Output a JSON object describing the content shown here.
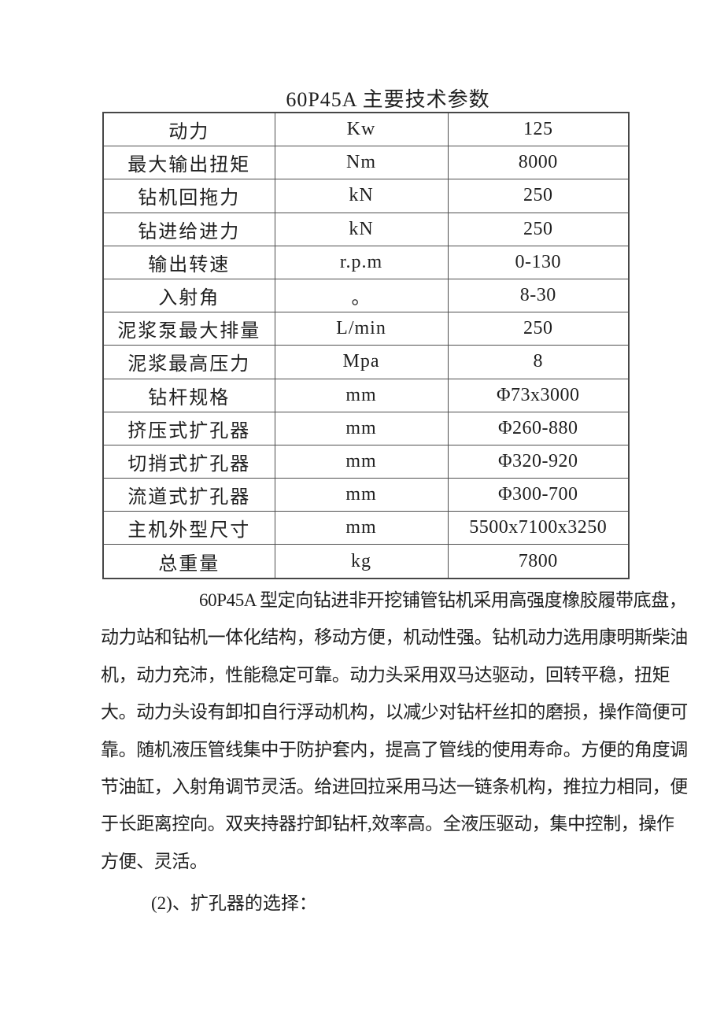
{
  "document": {
    "title": "60P45A 主要技术参数",
    "table": {
      "rows": [
        {
          "param": "动力",
          "unit": "Kw",
          "value": "125"
        },
        {
          "param": "最大输出扭矩",
          "unit": "Nm",
          "value": "8000"
        },
        {
          "param": "钻机回拖力",
          "unit": "kN",
          "value": "250"
        },
        {
          "param": "钻进给进力",
          "unit": "kN",
          "value": "250"
        },
        {
          "param": "输出转速",
          "unit": "r.p.m",
          "value": "0-130"
        },
        {
          "param": "入射角",
          "unit": "。",
          "value": "8-30"
        },
        {
          "param": "泥浆泵最大排量",
          "unit": "L/min",
          "value": "250"
        },
        {
          "param": "泥浆最高压力",
          "unit": "Mpa",
          "value": "8"
        },
        {
          "param": "钻杆规格",
          "unit": "mm",
          "value": "Φ73x3000"
        },
        {
          "param": "挤压式扩孔器",
          "unit": "mm",
          "value": "Φ260-880"
        },
        {
          "param": "切捎式扩孔器",
          "unit": "mm",
          "value": "Φ320-920"
        },
        {
          "param": "流道式扩孔器",
          "unit": "mm",
          "value": "Φ300-700"
        },
        {
          "param": "主机外型尺寸",
          "unit": "mm",
          "value": "5500x7100x3250"
        },
        {
          "param": "总重量",
          "unit": "kg",
          "value": "7800"
        }
      ]
    },
    "paragraph": {
      "lines": [
        "60P45A 型定向钻进非开挖铺管钻机采用高强度橡胶履带底盘，",
        "动力站和钻机一体化结构，移动方便，机动性强。钻机动力选用康明斯柴油",
        "机，动力充沛，性能稳定可靠。动力头采用双马达驱动，回转平稳，扭矩",
        "大。动力头设有卸扣自行浮动机构，以减少对钻杆丝扣的磨损，操作简便可",
        "靠。随机液压管线集中于防护套内，提高了管线的使用寿命。方便的角度调",
        "节油缸，入射角调节灵活。给进回拉采用马达一链条机构，推拉力相同，便",
        "于长距离控向。双夹持器拧卸钻杆,效率高。全液压驱动，集中控制，操作",
        "方便、灵活。"
      ]
    },
    "subheading": "(2)、扩孔器的选择："
  },
  "colors": {
    "background": "#ffffff",
    "text": "#1f1f1f",
    "table_border": "#4f4f4f"
  }
}
